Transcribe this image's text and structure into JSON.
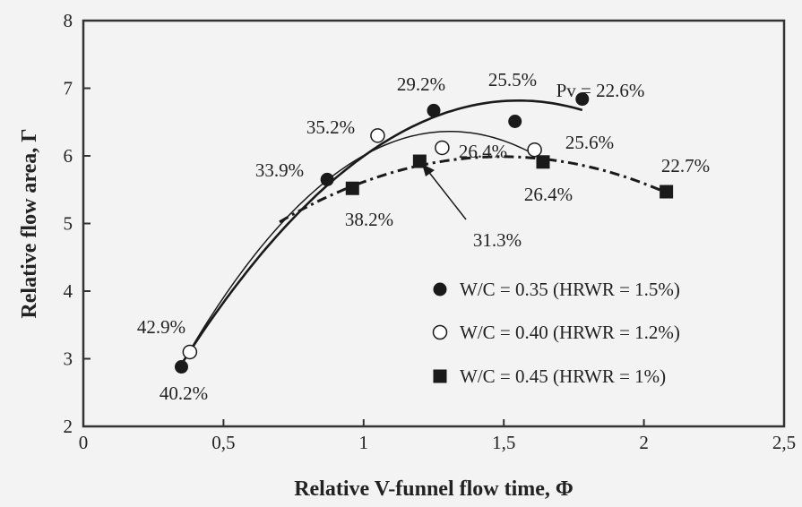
{
  "chart_data": {
    "type": "scatter",
    "xlabel": "Relative V-funnel flow time, Φ",
    "ylabel": "Relative flow area, Γ",
    "xlim": [
      0,
      2.5
    ],
    "ylim": [
      2,
      8
    ],
    "xticks": [
      0,
      0.5,
      1,
      1.5,
      2,
      2.5
    ],
    "xtick_labels": [
      "0",
      "0,5",
      "1",
      "1,5",
      "2",
      "2,5"
    ],
    "yticks": [
      2,
      3,
      4,
      5,
      6,
      7,
      8
    ],
    "ytick_labels": [
      "2",
      "3",
      "4",
      "5",
      "6",
      "7",
      "8"
    ],
    "grid": false,
    "legend_position": "bottom-right",
    "series": [
      {
        "name": "W/C = 0.35 (HRWR = 1.5%)",
        "marker": "filled-circle",
        "line": "solid",
        "points": [
          {
            "x": 0.35,
            "y": 2.88,
            "label": "40.2%"
          },
          {
            "x": 0.87,
            "y": 5.65,
            "label": "33.9%"
          },
          {
            "x": 1.25,
            "y": 6.67,
            "label": "29.2%"
          },
          {
            "x": 1.54,
            "y": 6.51,
            "label": "25.5%"
          },
          {
            "x": 1.78,
            "y": 6.84,
            "label": "Pv = 22.6%"
          }
        ]
      },
      {
        "name": "W/C = 0.40 (HRWR = 1.2%)",
        "marker": "open-circle",
        "line": "thin-solid",
        "points": [
          {
            "x": 0.38,
            "y": 3.1,
            "label": "42.9%"
          },
          {
            "x": 1.05,
            "y": 6.3,
            "label": "35.2%"
          },
          {
            "x": 1.28,
            "y": 6.12,
            "label": "26.4%"
          },
          {
            "x": 1.61,
            "y": 6.09,
            "label": "25.6%"
          }
        ]
      },
      {
        "name": "W/C = 0.45 (HRWR = 1%)",
        "marker": "filled-square",
        "line": "dash-dot",
        "points": [
          {
            "x": 0.96,
            "y": 5.52,
            "label": "38.2%"
          },
          {
            "x": 1.2,
            "y": 5.92,
            "label": "31.3%"
          },
          {
            "x": 1.64,
            "y": 5.91,
            "label": "26.4%"
          },
          {
            "x": 2.08,
            "y": 5.47,
            "label": "22.7%"
          }
        ]
      }
    ],
    "colors": {
      "background": "#f3f3f3",
      "axes": "#333333",
      "ink": "#1a1a1a"
    }
  }
}
